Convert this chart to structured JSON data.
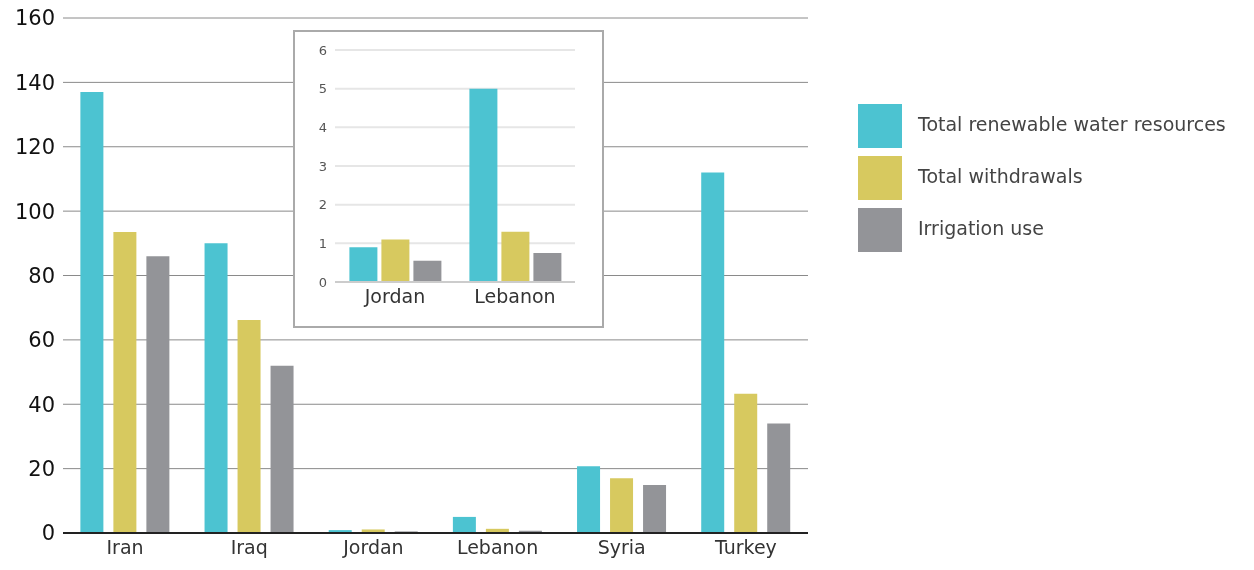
{
  "chart_data": [
    {
      "type": "bar",
      "categories": [
        "Iran",
        "Iraq",
        "Jordan",
        "Lebanon",
        "Syria",
        "Turkey"
      ],
      "series": [
        {
          "name": "Total renewable water resources",
          "color": "#4cc3d1",
          "values": [
            137,
            90,
            0.9,
            5,
            20.7,
            112
          ]
        },
        {
          "name": "Total withdrawals",
          "color": "#d7c95f",
          "values": [
            93.5,
            66.2,
            1.1,
            1.3,
            17,
            43.3
          ]
        },
        {
          "name": "Irrigation use",
          "color": "#939498",
          "values": [
            86,
            52,
            0.5,
            0.7,
            14.9,
            34
          ]
        }
      ],
      "ylim": [
        0,
        160
      ],
      "yticks": [
        0,
        20,
        40,
        60,
        80,
        100,
        120,
        140,
        160
      ],
      "grid": "y",
      "legend": "right"
    },
    {
      "type": "bar",
      "categories": [
        "Jordan",
        "Lebanon"
      ],
      "series": [
        {
          "color": "#4cc3d1",
          "values": [
            0.9,
            5
          ]
        },
        {
          "color": "#d7c95f",
          "values": [
            1.1,
            1.3
          ]
        },
        {
          "color": "#939498",
          "values": [
            0.55,
            0.75
          ]
        }
      ],
      "ylim": [
        0,
        6
      ],
      "yticks": [
        0,
        1,
        2,
        3,
        4,
        5,
        6
      ],
      "grid": "y"
    }
  ]
}
